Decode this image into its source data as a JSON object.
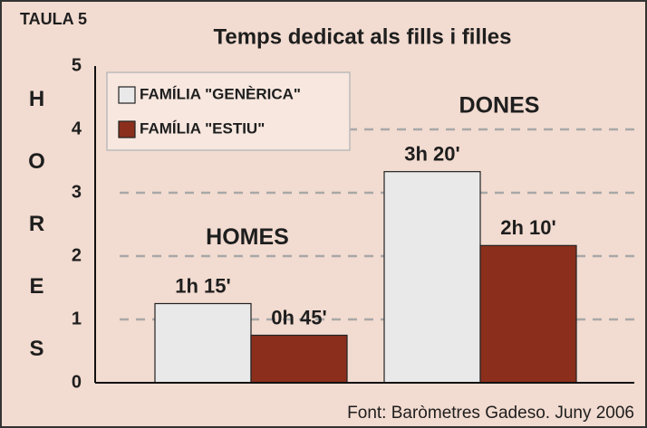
{
  "chart_data": {
    "type": "bar",
    "tag": "TAULA 5",
    "title": "Temps dedicat als fills i filles",
    "y_label": "HORES",
    "source": "Font: Baròmetres Gadeso. Juny 2006",
    "categories": [
      "HOMES",
      "DONES"
    ],
    "series": [
      {
        "name": "FAMÍLIA \"GENÈRICA\"",
        "color": "#e9e9ea",
        "values": [
          1.25,
          3.3333
        ],
        "value_labels": [
          "1h 15'",
          "3h 20'"
        ]
      },
      {
        "name": "FAMÍLIA \"ESTIU\"",
        "color": "#8b2f1c",
        "values": [
          0.75,
          2.1667
        ],
        "value_labels": [
          "0h 45'",
          "2h 10'"
        ]
      }
    ],
    "ylim": [
      0,
      5
    ],
    "yticks": [
      0,
      1,
      2,
      3,
      4,
      5
    ],
    "grid": true
  }
}
